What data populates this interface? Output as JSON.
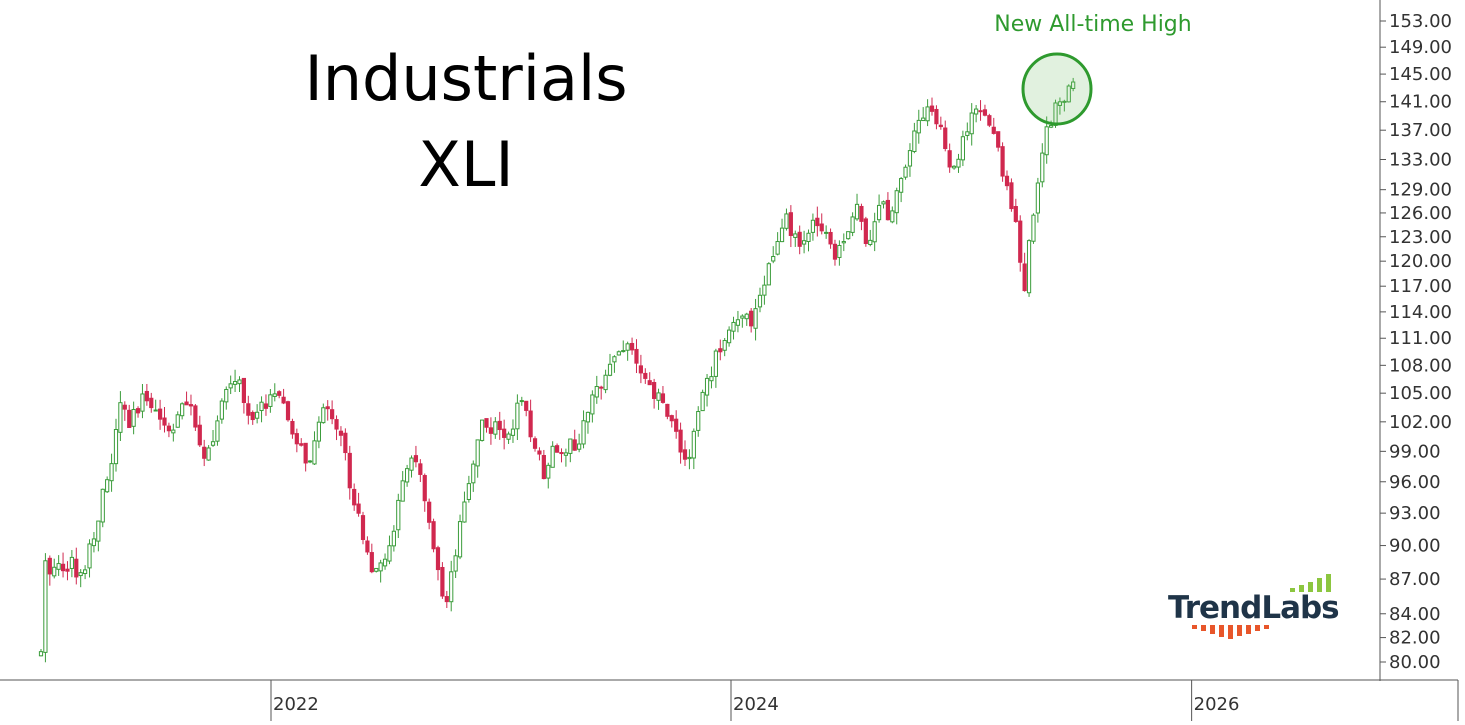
{
  "chart_data": {
    "type": "candlestick",
    "title": [
      "Industrials",
      "XLI"
    ],
    "xlabel": "",
    "ylabel": "",
    "ylim": [
      80,
      153
    ],
    "yscale": "log",
    "y_ticks": [
      "153.00",
      "149.00",
      "145.00",
      "141.00",
      "137.00",
      "133.00",
      "129.00",
      "126.00",
      "123.00",
      "120.00",
      "117.00",
      "114.00",
      "111.00",
      "108.00",
      "105.00",
      "102.00",
      "99.00",
      "96.00",
      "93.00",
      "90.00",
      "87.00",
      "84.00",
      "82.00",
      "80.00"
    ],
    "x_ticks": [
      "2022",
      "2024",
      "2026"
    ],
    "grid": false,
    "annotation": {
      "text": "New All-time High",
      "color": "#2e9a2e"
    },
    "up_color": "#3a9c3a",
    "down_color": "#d0284f",
    "logo": {
      "text": "TrendLabs",
      "text_color": "#1f3448",
      "bar_up_color": "#8cc63f",
      "bar_down_color": "#e8562a"
    },
    "anchors": [
      [
        "2021-01-01",
        80.5
      ],
      [
        "2021-01-04",
        88.0
      ],
      [
        "2021-02-20",
        88.5
      ],
      [
        "2021-03-01",
        86.5
      ],
      [
        "2021-03-20",
        90.0
      ],
      [
        "2021-04-20",
        97.0
      ],
      [
        "2021-05-10",
        104.5
      ],
      [
        "2021-05-20",
        101.5
      ],
      [
        "2021-06-20",
        105.0
      ],
      [
        "2021-07-20",
        101.0
      ],
      [
        "2021-08-20",
        104.0
      ],
      [
        "2021-09-20",
        98.5
      ],
      [
        "2021-10-20",
        104.5
      ],
      [
        "2021-11-08",
        107.0
      ],
      [
        "2021-12-01",
        101.5
      ],
      [
        "2022-01-05",
        105.5
      ],
      [
        "2022-02-10",
        100.0
      ],
      [
        "2022-03-05",
        97.5
      ],
      [
        "2022-03-28",
        104.5
      ],
      [
        "2022-04-20",
        101.0
      ],
      [
        "2022-05-10",
        95.0
      ],
      [
        "2022-06-15",
        87.0
      ],
      [
        "2022-07-01",
        88.5
      ],
      [
        "2022-08-15",
        99.5
      ],
      [
        "2022-09-30",
        85.0
      ],
      [
        "2022-10-05",
        84.0
      ],
      [
        "2022-11-30",
        102.0
      ],
      [
        "2023-01-10",
        100.5
      ],
      [
        "2023-02-01",
        104.0
      ],
      [
        "2023-03-10",
        97.0
      ],
      [
        "2023-03-25",
        99.5
      ],
      [
        "2023-05-01",
        99.5
      ],
      [
        "2023-06-20",
        108.5
      ],
      [
        "2023-07-25",
        110.5
      ],
      [
        "2023-08-15",
        106.0
      ],
      [
        "2023-09-20",
        103.5
      ],
      [
        "2023-10-25",
        97.5
      ],
      [
        "2023-11-15",
        104.5
      ],
      [
        "2023-12-28",
        112.5
      ],
      [
        "2024-02-01",
        113.0
      ],
      [
        "2024-03-28",
        125.0
      ],
      [
        "2024-04-18",
        121.5
      ],
      [
        "2024-05-20",
        125.5
      ],
      [
        "2024-06-15",
        121.0
      ],
      [
        "2024-07-18",
        126.5
      ],
      [
        "2024-08-05",
        122.5
      ],
      [
        "2024-09-01",
        128.5
      ],
      [
        "2024-09-06",
        124.5
      ],
      [
        "2024-10-15",
        136.5
      ],
      [
        "2024-11-11",
        141.0
      ],
      [
        "2024-12-20",
        131.0
      ],
      [
        "2025-01-08",
        137.0
      ],
      [
        "2025-01-28",
        140.0
      ],
      [
        "2025-02-20",
        137.0
      ],
      [
        "2025-03-10",
        130.0
      ],
      [
        "2025-03-28",
        126.0
      ],
      [
        "2025-04-04",
        119.5
      ],
      [
        "2025-04-08",
        113.5
      ],
      [
        "2025-04-22",
        125.0
      ],
      [
        "2025-05-15",
        137.0
      ],
      [
        "2025-06-02",
        141.0
      ],
      [
        "2025-06-20",
        142.5
      ],
      [
        "2025-06-30",
        144.5
      ]
    ]
  }
}
